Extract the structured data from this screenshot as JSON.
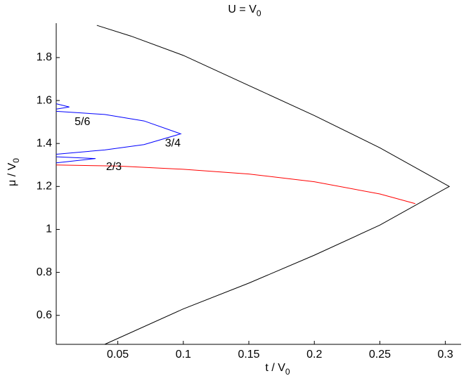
{
  "chart_data": {
    "type": "line",
    "title": {
      "text": "U = V",
      "sub": "0"
    },
    "xlabel": {
      "text": "t / V",
      "sub": "0"
    },
    "ylabel": {
      "text": "μ / V",
      "sub": "0"
    },
    "xlim": [
      0.003,
      0.312
    ],
    "ylim": [
      0.465,
      1.96
    ],
    "xticks": [
      0.05,
      0.1,
      0.15,
      0.2,
      0.25,
      0.3
    ],
    "yticks": [
      0.6,
      0.8,
      1,
      1.2,
      1.4,
      1.6,
      1.8
    ],
    "grid": false,
    "series": [
      {
        "color": "#000000",
        "x": [
          0.034,
          0.06,
          0.1,
          0.15,
          0.2,
          0.25,
          0.303,
          0.25,
          0.2,
          0.15,
          0.1,
          0.04
        ],
        "values": [
          1.95,
          1.9,
          1.81,
          1.67,
          1.53,
          1.38,
          1.2,
          1.02,
          0.88,
          0.75,
          0.63,
          0.465
        ]
      },
      {
        "color": "#ff0000",
        "x": [
          0.003,
          0.05,
          0.1,
          0.15,
          0.2,
          0.25,
          0.277
        ],
        "values": [
          1.3,
          1.295,
          1.28,
          1.258,
          1.222,
          1.165,
          1.12
        ]
      },
      {
        "color": "#0000ff",
        "x": [
          0.003,
          0.013,
          0.003,
          null,
          0.003,
          0.04,
          0.07,
          0.098,
          0.07,
          0.04,
          0.003,
          null,
          0.003,
          0.033,
          0.003
        ],
        "values": [
          1.585,
          1.57,
          1.56,
          null,
          1.55,
          1.535,
          1.505,
          1.445,
          1.395,
          1.37,
          1.35,
          null,
          1.338,
          1.33,
          1.31
        ]
      }
    ],
    "annotations": [
      {
        "text": "5/6",
        "x": 0.023,
        "y": 1.5
      },
      {
        "text": "3/4",
        "x": 0.092,
        "y": 1.4
      },
      {
        "text": "2/3",
        "x": 0.047,
        "y": 1.29
      }
    ]
  }
}
